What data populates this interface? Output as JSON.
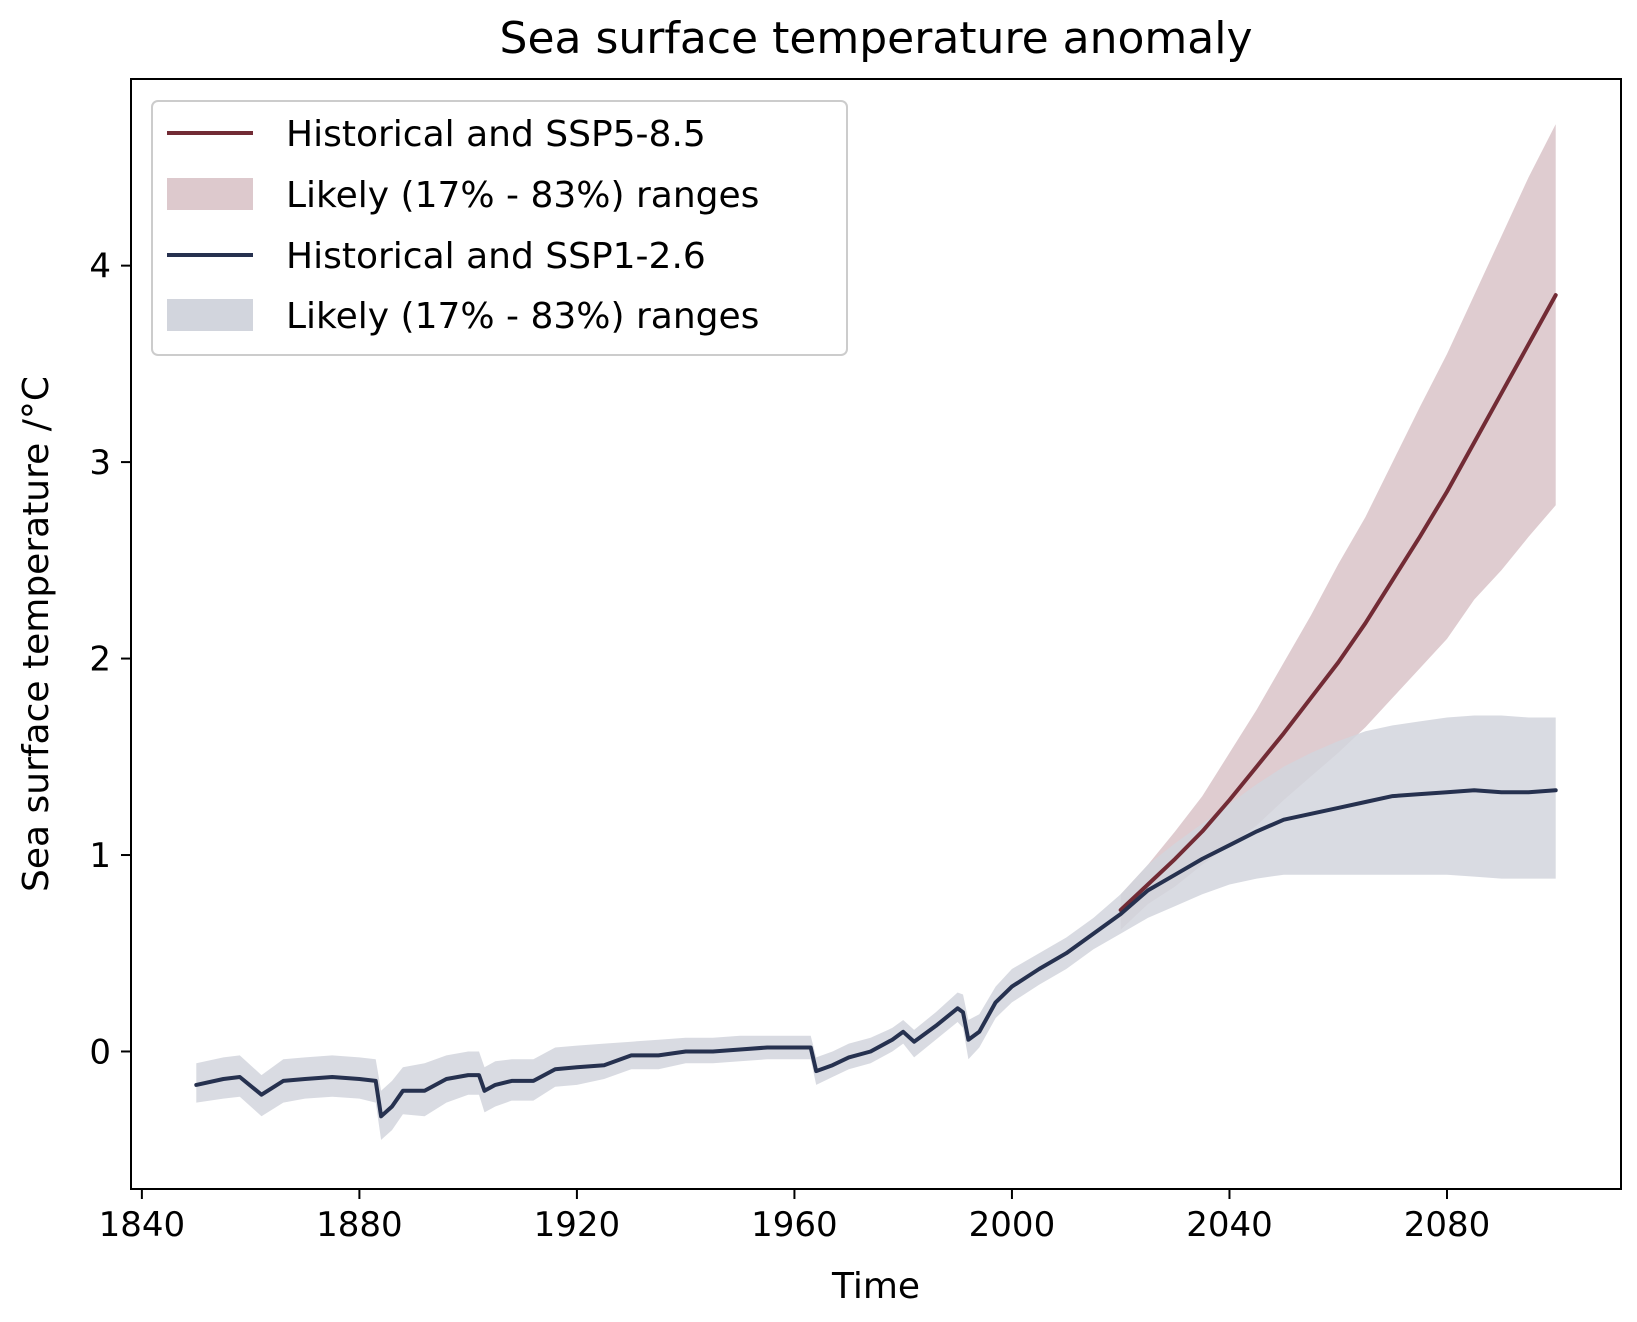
{
  "chart_data": {
    "type": "line",
    "title": "Sea surface temperature anomaly",
    "xlabel": "Time",
    "ylabel": "Sea surface temperature /°C",
    "xlim": [
      1838,
      2112
    ],
    "ylim": [
      -0.7,
      4.95
    ],
    "x_ticks": [
      1840,
      1880,
      1920,
      1960,
      2000,
      2040,
      2080
    ],
    "y_ticks": [
      0,
      1,
      2,
      3,
      4
    ],
    "grid": false,
    "legend_position": "upper-left",
    "legend": [
      {
        "label": "Historical and SSP5-8.5",
        "kind": "line"
      },
      {
        "label": "Likely (17% - 83%) ranges",
        "kind": "band"
      },
      {
        "label": "Historical and SSP1-2.6",
        "kind": "line"
      },
      {
        "label": "Likely (17% - 83%) ranges",
        "kind": "band"
      }
    ],
    "series": [
      {
        "name": "Historical and SSP5-8.5",
        "color": "#722b35",
        "band_color": "#ddc9cd",
        "x": [
          2020,
          2025,
          2030,
          2035,
          2040,
          2045,
          2050,
          2055,
          2060,
          2065,
          2070,
          2075,
          2080,
          2085,
          2090,
          2095,
          2100
        ],
        "values": [
          0.72,
          0.85,
          0.98,
          1.12,
          1.28,
          1.45,
          1.62,
          1.8,
          1.98,
          2.18,
          2.4,
          2.62,
          2.85,
          3.1,
          3.35,
          3.6,
          3.85
        ],
        "lower": [
          0.62,
          0.75,
          0.84,
          0.95,
          1.05,
          1.15,
          1.28,
          1.4,
          1.52,
          1.65,
          1.8,
          1.95,
          2.1,
          2.3,
          2.45,
          2.62,
          2.78
        ],
        "upper": [
          0.8,
          0.95,
          1.12,
          1.3,
          1.52,
          1.74,
          1.98,
          2.22,
          2.48,
          2.72,
          3.0,
          3.28,
          3.55,
          3.85,
          4.15,
          4.45,
          4.72
        ]
      },
      {
        "name": "Historical and SSP1-2.6",
        "color": "#26314f",
        "band_color": "#d2d5dd",
        "x": [
          1850,
          1855,
          1858,
          1862,
          1866,
          1870,
          1875,
          1880,
          1883,
          1884,
          1886,
          1888,
          1892,
          1896,
          1900,
          1902,
          1903,
          1905,
          1908,
          1912,
          1916,
          1920,
          1925,
          1930,
          1935,
          1940,
          1945,
          1950,
          1955,
          1960,
          1963,
          1964,
          1967,
          1970,
          1974,
          1978,
          1980,
          1982,
          1986,
          1990,
          1991,
          1992,
          1994,
          1997,
          2000,
          2005,
          2010,
          2015,
          2020,
          2025,
          2030,
          2035,
          2040,
          2045,
          2050,
          2055,
          2060,
          2065,
          2070,
          2075,
          2080,
          2085,
          2090,
          2095,
          2100
        ],
        "values": [
          -0.17,
          -0.14,
          -0.13,
          -0.22,
          -0.15,
          -0.14,
          -0.13,
          -0.14,
          -0.15,
          -0.33,
          -0.28,
          -0.2,
          -0.2,
          -0.14,
          -0.12,
          -0.12,
          -0.2,
          -0.17,
          -0.15,
          -0.15,
          -0.09,
          -0.08,
          -0.07,
          -0.02,
          -0.02,
          0.0,
          0.0,
          0.01,
          0.02,
          0.02,
          0.02,
          -0.1,
          -0.07,
          -0.03,
          0.0,
          0.06,
          0.1,
          0.05,
          0.13,
          0.22,
          0.2,
          0.06,
          0.1,
          0.25,
          0.33,
          0.42,
          0.5,
          0.6,
          0.7,
          0.82,
          0.9,
          0.98,
          1.05,
          1.12,
          1.18,
          1.21,
          1.24,
          1.27,
          1.3,
          1.31,
          1.32,
          1.33,
          1.32,
          1.32,
          1.33
        ],
        "lower": [
          -0.26,
          -0.24,
          -0.23,
          -0.33,
          -0.26,
          -0.24,
          -0.23,
          -0.24,
          -0.26,
          -0.45,
          -0.4,
          -0.32,
          -0.33,
          -0.26,
          -0.22,
          -0.22,
          -0.31,
          -0.28,
          -0.25,
          -0.25,
          -0.18,
          -0.17,
          -0.14,
          -0.09,
          -0.09,
          -0.06,
          -0.06,
          -0.05,
          -0.04,
          -0.04,
          -0.04,
          -0.17,
          -0.13,
          -0.09,
          -0.06,
          0.0,
          0.04,
          -0.03,
          0.06,
          0.15,
          0.12,
          -0.04,
          0.02,
          0.17,
          0.25,
          0.34,
          0.42,
          0.52,
          0.6,
          0.68,
          0.74,
          0.8,
          0.85,
          0.88,
          0.9,
          0.9,
          0.9,
          0.9,
          0.9,
          0.9,
          0.9,
          0.89,
          0.88,
          0.88,
          0.88
        ],
        "upper": [
          -0.06,
          -0.03,
          -0.02,
          -0.12,
          -0.04,
          -0.03,
          -0.02,
          -0.03,
          -0.04,
          -0.2,
          -0.15,
          -0.08,
          -0.06,
          -0.02,
          0.0,
          0.0,
          -0.08,
          -0.05,
          -0.04,
          -0.04,
          0.02,
          0.03,
          0.04,
          0.05,
          0.06,
          0.07,
          0.07,
          0.08,
          0.08,
          0.08,
          0.08,
          -0.03,
          0.0,
          0.04,
          0.07,
          0.12,
          0.16,
          0.11,
          0.2,
          0.3,
          0.29,
          0.16,
          0.19,
          0.33,
          0.42,
          0.5,
          0.58,
          0.68,
          0.8,
          0.95,
          1.06,
          1.16,
          1.26,
          1.36,
          1.45,
          1.52,
          1.58,
          1.63,
          1.66,
          1.68,
          1.7,
          1.71,
          1.71,
          1.7,
          1.7
        ]
      }
    ]
  }
}
